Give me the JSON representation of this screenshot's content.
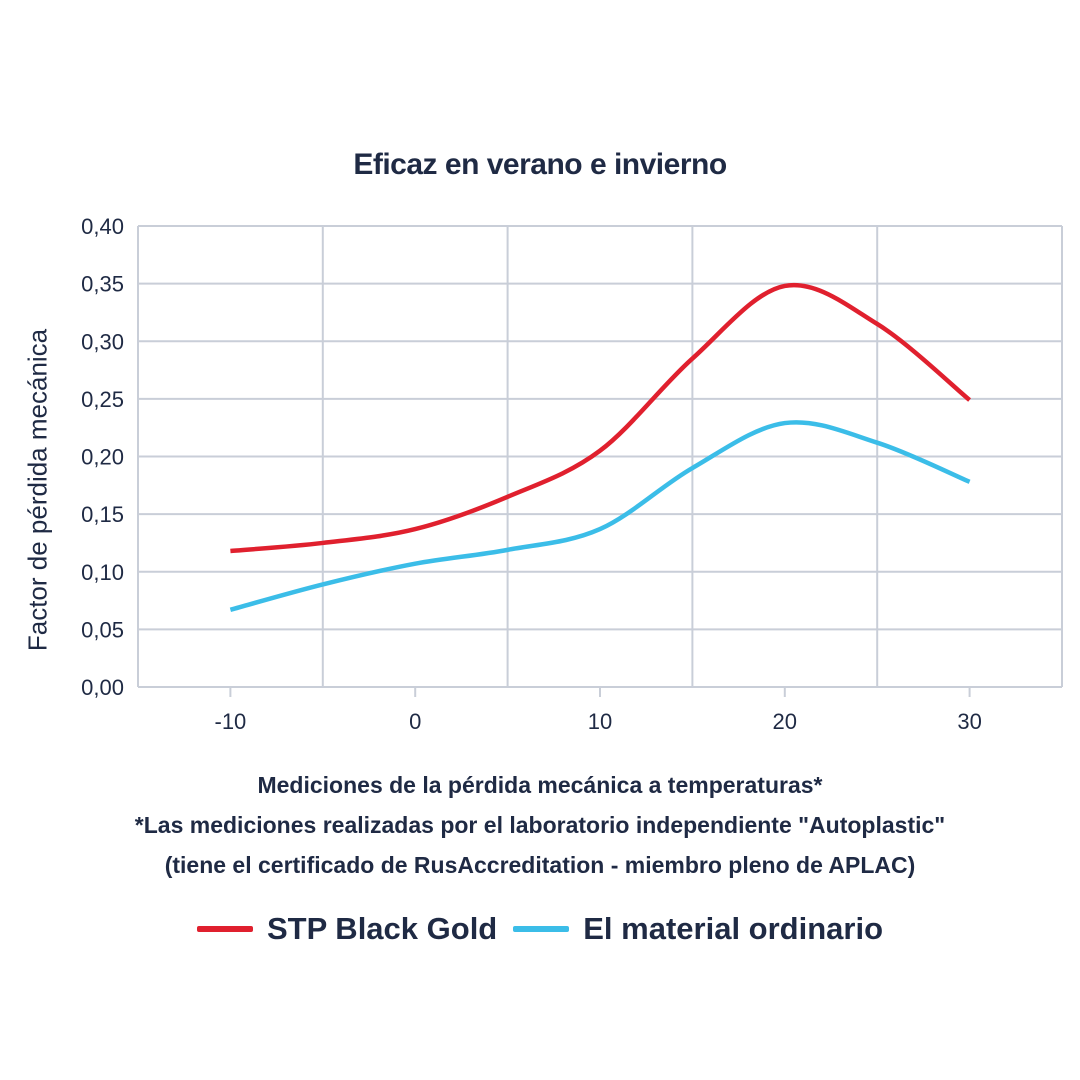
{
  "chart_data": {
    "type": "line",
    "title": "Eficaz en verano e invierno",
    "ylabel": "Factor de pérdida mecánica",
    "xlabel": "Mediciones de la pérdida mecánica a temperaturas*",
    "notes": [
      "*Las mediciones realizadas por el laboratorio independiente \"Autoplastic\"",
      "(tiene el certificado de RusAccreditation - miembro pleno de APLAC)"
    ],
    "xlim": [
      -15,
      35
    ],
    "ylim": [
      0,
      0.4
    ],
    "x_ticks": [
      -10,
      0,
      10,
      20,
      30
    ],
    "x_tick_labels": [
      "-10",
      "0",
      "10",
      "20",
      "30"
    ],
    "x_grid": [
      -15,
      -5,
      5,
      15,
      25,
      35
    ],
    "y_ticks": [
      0,
      0.05,
      0.1,
      0.15,
      0.2,
      0.25,
      0.3,
      0.35,
      0.4
    ],
    "y_tick_labels": [
      "0,00",
      "0,05",
      "0,10",
      "0,15",
      "0,20",
      "0,25",
      "0,30",
      "0,35",
      "0,40"
    ],
    "grid": true,
    "legend_position": "bottom",
    "series": [
      {
        "name": "STP Black Gold",
        "color": "#e0202e",
        "x": [
          -10,
          -5,
          0,
          5,
          10,
          15,
          20,
          25,
          30
        ],
        "y": [
          0.118,
          0.125,
          0.137,
          0.165,
          0.205,
          0.285,
          0.348,
          0.315,
          0.249
        ]
      },
      {
        "name": "El material ordinario",
        "color": "#3bbde8",
        "x": [
          -10,
          -5,
          0,
          5,
          10,
          15,
          20,
          25,
          30
        ],
        "y": [
          0.067,
          0.089,
          0.107,
          0.119,
          0.137,
          0.19,
          0.229,
          0.212,
          0.178
        ]
      }
    ]
  }
}
